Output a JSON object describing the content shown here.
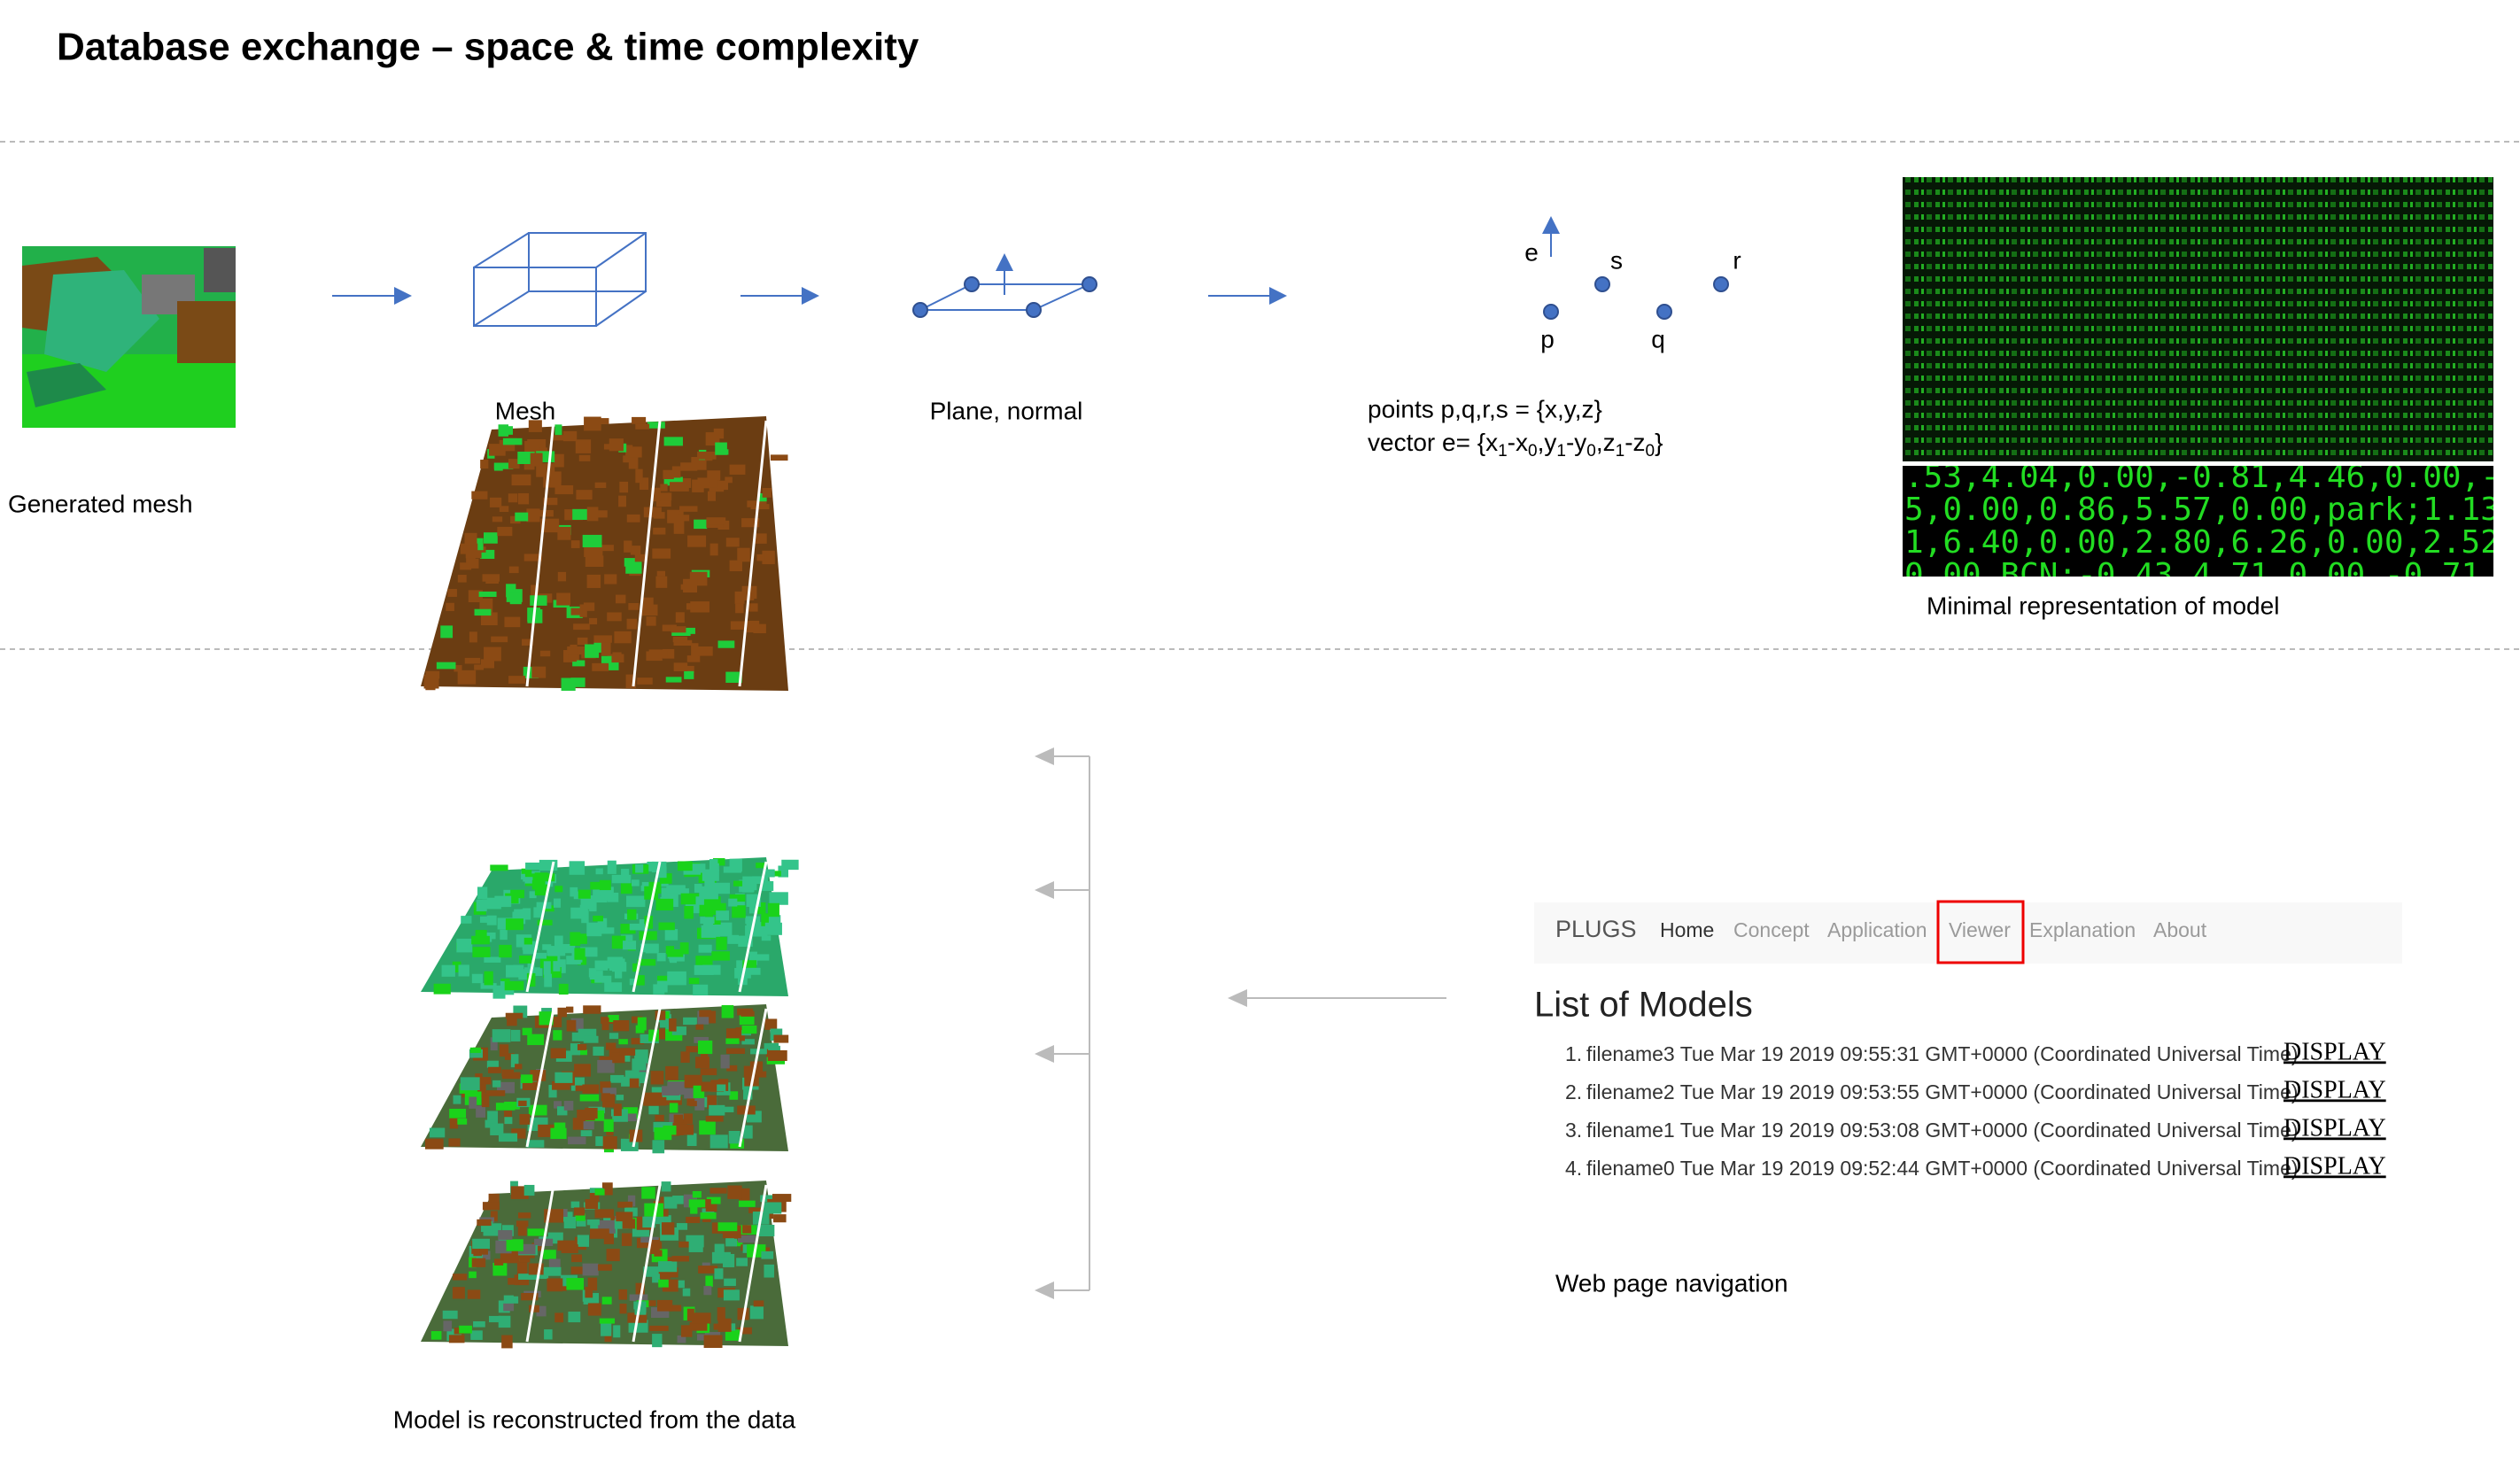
{
  "title": "Database exchange – space & time complexity",
  "pipeline": {
    "generated_mesh": "Generated mesh",
    "mesh": "Mesh",
    "plane": "Plane, normal",
    "points": {
      "e": "e",
      "s": "s",
      "r": "r",
      "p": "p",
      "q": "q",
      "line1": "points p,q,r,s = {x,y,z}",
      "line2": [
        "vector e= {x",
        "1",
        "-x",
        "0",
        ",y",
        "1",
        "-y",
        "0",
        ",z",
        "1",
        "-z",
        "0",
        "}"
      ]
    },
    "minimal": {
      "lines": [
        ".53,4.04,0.00,-0.81,4.46,0.00,-0",
        "5,0.00,0.86,5.57,0.00,park;1.13",
        "1,6.40,0.00,2.80,6.26,0.00,2.52",
        "0.00,BCN;-0.43,4.71,0.00,-0.71,"
      ],
      "caption": "Minimal representation of model"
    }
  },
  "reconstruction": {
    "caption": "Model is reconstructed from the data"
  },
  "web": {
    "brand": "PLUGS",
    "links": [
      "Home",
      "Concept",
      "Application",
      "Viewer",
      "Explanation",
      "About"
    ],
    "heading": "List of Models",
    "items": [
      {
        "number": "1.",
        "text": "filename3 Tue Mar 19 2019 09:55:31 GMT+0000 (Coordinated Universal Time)",
        "link": "DISPLAY"
      },
      {
        "number": "2.",
        "text": "filename2 Tue Mar 19 2019 09:53:55 GMT+0000 (Coordinated Universal Time)",
        "link": "DISPLAY"
      },
      {
        "number": "3.",
        "text": "filename1 Tue Mar 19 2019 09:53:08 GMT+0000 (Coordinated Universal Time)",
        "link": "DISPLAY"
      },
      {
        "number": "4.",
        "text": "filename0 Tue Mar 19 2019 09:52:44 GMT+0000 (Coordinated Universal Time)",
        "link": "DISPLAY"
      }
    ],
    "caption": "Web page navigation"
  }
}
